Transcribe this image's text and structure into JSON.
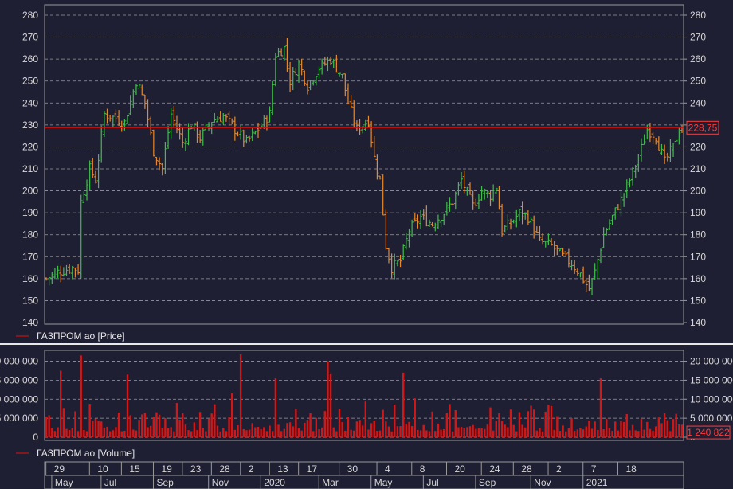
{
  "chart_data": [
    {
      "type": "ohlc",
      "legend": "ГАЗПРОМ ао [Price]",
      "ylim": [
        140,
        280
      ],
      "yticks": [
        140,
        150,
        160,
        170,
        180,
        190,
        200,
        210,
        220,
        230,
        240,
        250,
        260,
        270,
        280
      ],
      "last_price": 228.75,
      "last_price_label": "228,75",
      "colors": {
        "up": "#3fbf4a",
        "down": "#e8892b",
        "line": "#cc1111"
      },
      "grid": true,
      "anchor_closes": [
        [
          0,
          160
        ],
        [
          4,
          163
        ],
        [
          9,
          165
        ],
        [
          11,
          164
        ],
        [
          12,
          195
        ],
        [
          15,
          210
        ],
        [
          17,
          205
        ],
        [
          20,
          235
        ],
        [
          24,
          233
        ],
        [
          27,
          231
        ],
        [
          31,
          250
        ],
        [
          34,
          240
        ],
        [
          37,
          218
        ],
        [
          40,
          210
        ],
        [
          43,
          235
        ],
        [
          47,
          222
        ],
        [
          50,
          230
        ],
        [
          53,
          224
        ],
        [
          57,
          232
        ],
        [
          61,
          234
        ],
        [
          65,
          228
        ],
        [
          69,
          222
        ],
        [
          73,
          228
        ],
        [
          77,
          235
        ],
        [
          79,
          262
        ],
        [
          82,
          265
        ],
        [
          84,
          250
        ],
        [
          87,
          258
        ],
        [
          90,
          248
        ],
        [
          94,
          256
        ],
        [
          98,
          260
        ],
        [
          102,
          252
        ],
        [
          104,
          240
        ],
        [
          107,
          228
        ],
        [
          111,
          232
        ],
        [
          113,
          215
        ],
        [
          115,
          205
        ],
        [
          117,
          175
        ],
        [
          119,
          165
        ],
        [
          122,
          168
        ],
        [
          125,
          182
        ],
        [
          129,
          188
        ],
        [
          133,
          185
        ],
        [
          137,
          190
        ],
        [
          140,
          195
        ],
        [
          143,
          205
        ],
        [
          147,
          193
        ],
        [
          150,
          200
        ],
        [
          153,
          198
        ],
        [
          155,
          202
        ],
        [
          157,
          182
        ],
        [
          160,
          185
        ],
        [
          163,
          190
        ],
        [
          166,
          188
        ],
        [
          170,
          177
        ],
        [
          174,
          175
        ],
        [
          178,
          170
        ],
        [
          181,
          167
        ],
        [
          184,
          162
        ],
        [
          187,
          155
        ],
        [
          189,
          163
        ],
        [
          192,
          180
        ],
        [
          195,
          188
        ],
        [
          198,
          196
        ],
        [
          201,
          205
        ],
        [
          204,
          215
        ],
        [
          207,
          228
        ],
        [
          210,
          225
        ],
        [
          213,
          213
        ],
        [
          216,
          220
        ],
        [
          218,
          228
        ]
      ]
    },
    {
      "type": "bar",
      "legend": "ГАЗПРОМ ао [Volume]",
      "ylim": [
        0,
        22000000
      ],
      "yticks": [
        0,
        5000000,
        10000000,
        15000000,
        20000000
      ],
      "ytick_labels": [
        "0",
        "5 000 000",
        "10 000 000",
        "15 000 000",
        "20 000 000"
      ],
      "last_volume": 1240822,
      "last_volume_label": "1 240 822",
      "color": "#d01818",
      "spikes": [
        [
          5,
          17500000
        ],
        [
          12,
          21500000
        ],
        [
          28,
          16500000
        ],
        [
          64,
          11500000
        ],
        [
          67,
          21800000
        ],
        [
          79,
          15500000
        ],
        [
          97,
          20000000
        ],
        [
          98,
          16800000
        ],
        [
          123,
          17000000
        ],
        [
          191,
          15500000
        ]
      ]
    }
  ],
  "x_axis": {
    "days": [
      {
        "i": 1,
        "label": "29"
      },
      {
        "i": 16,
        "label": "10"
      },
      {
        "i": 27,
        "label": "15"
      },
      {
        "i": 38,
        "label": "19"
      },
      {
        "i": 48,
        "label": "23"
      },
      {
        "i": 58,
        "label": "28"
      },
      {
        "i": 68,
        "label": "2"
      },
      {
        "i": 78,
        "label": "13"
      },
      {
        "i": 88,
        "label": "17"
      },
      {
        "i": 102,
        "label": "30"
      },
      {
        "i": 115,
        "label": "4"
      },
      {
        "i": 127,
        "label": "8"
      },
      {
        "i": 139,
        "label": "20"
      },
      {
        "i": 151,
        "label": "24"
      },
      {
        "i": 162,
        "label": "28"
      },
      {
        "i": 174,
        "label": "2"
      },
      {
        "i": 186,
        "label": "7"
      },
      {
        "i": 198,
        "label": "18"
      }
    ],
    "months": [
      {
        "i": 3,
        "label": "May"
      },
      {
        "i": 20,
        "label": "Jul"
      },
      {
        "i": 38,
        "label": "Sep"
      },
      {
        "i": 57,
        "label": "Nov"
      },
      {
        "i": 75,
        "label": "2020"
      },
      {
        "i": 95,
        "label": "Mar"
      },
      {
        "i": 113,
        "label": "May"
      },
      {
        "i": 131,
        "label": "Jul"
      },
      {
        "i": 149,
        "label": "Sep"
      },
      {
        "i": 168,
        "label": "Nov"
      },
      {
        "i": 186,
        "label": "2021"
      }
    ]
  }
}
